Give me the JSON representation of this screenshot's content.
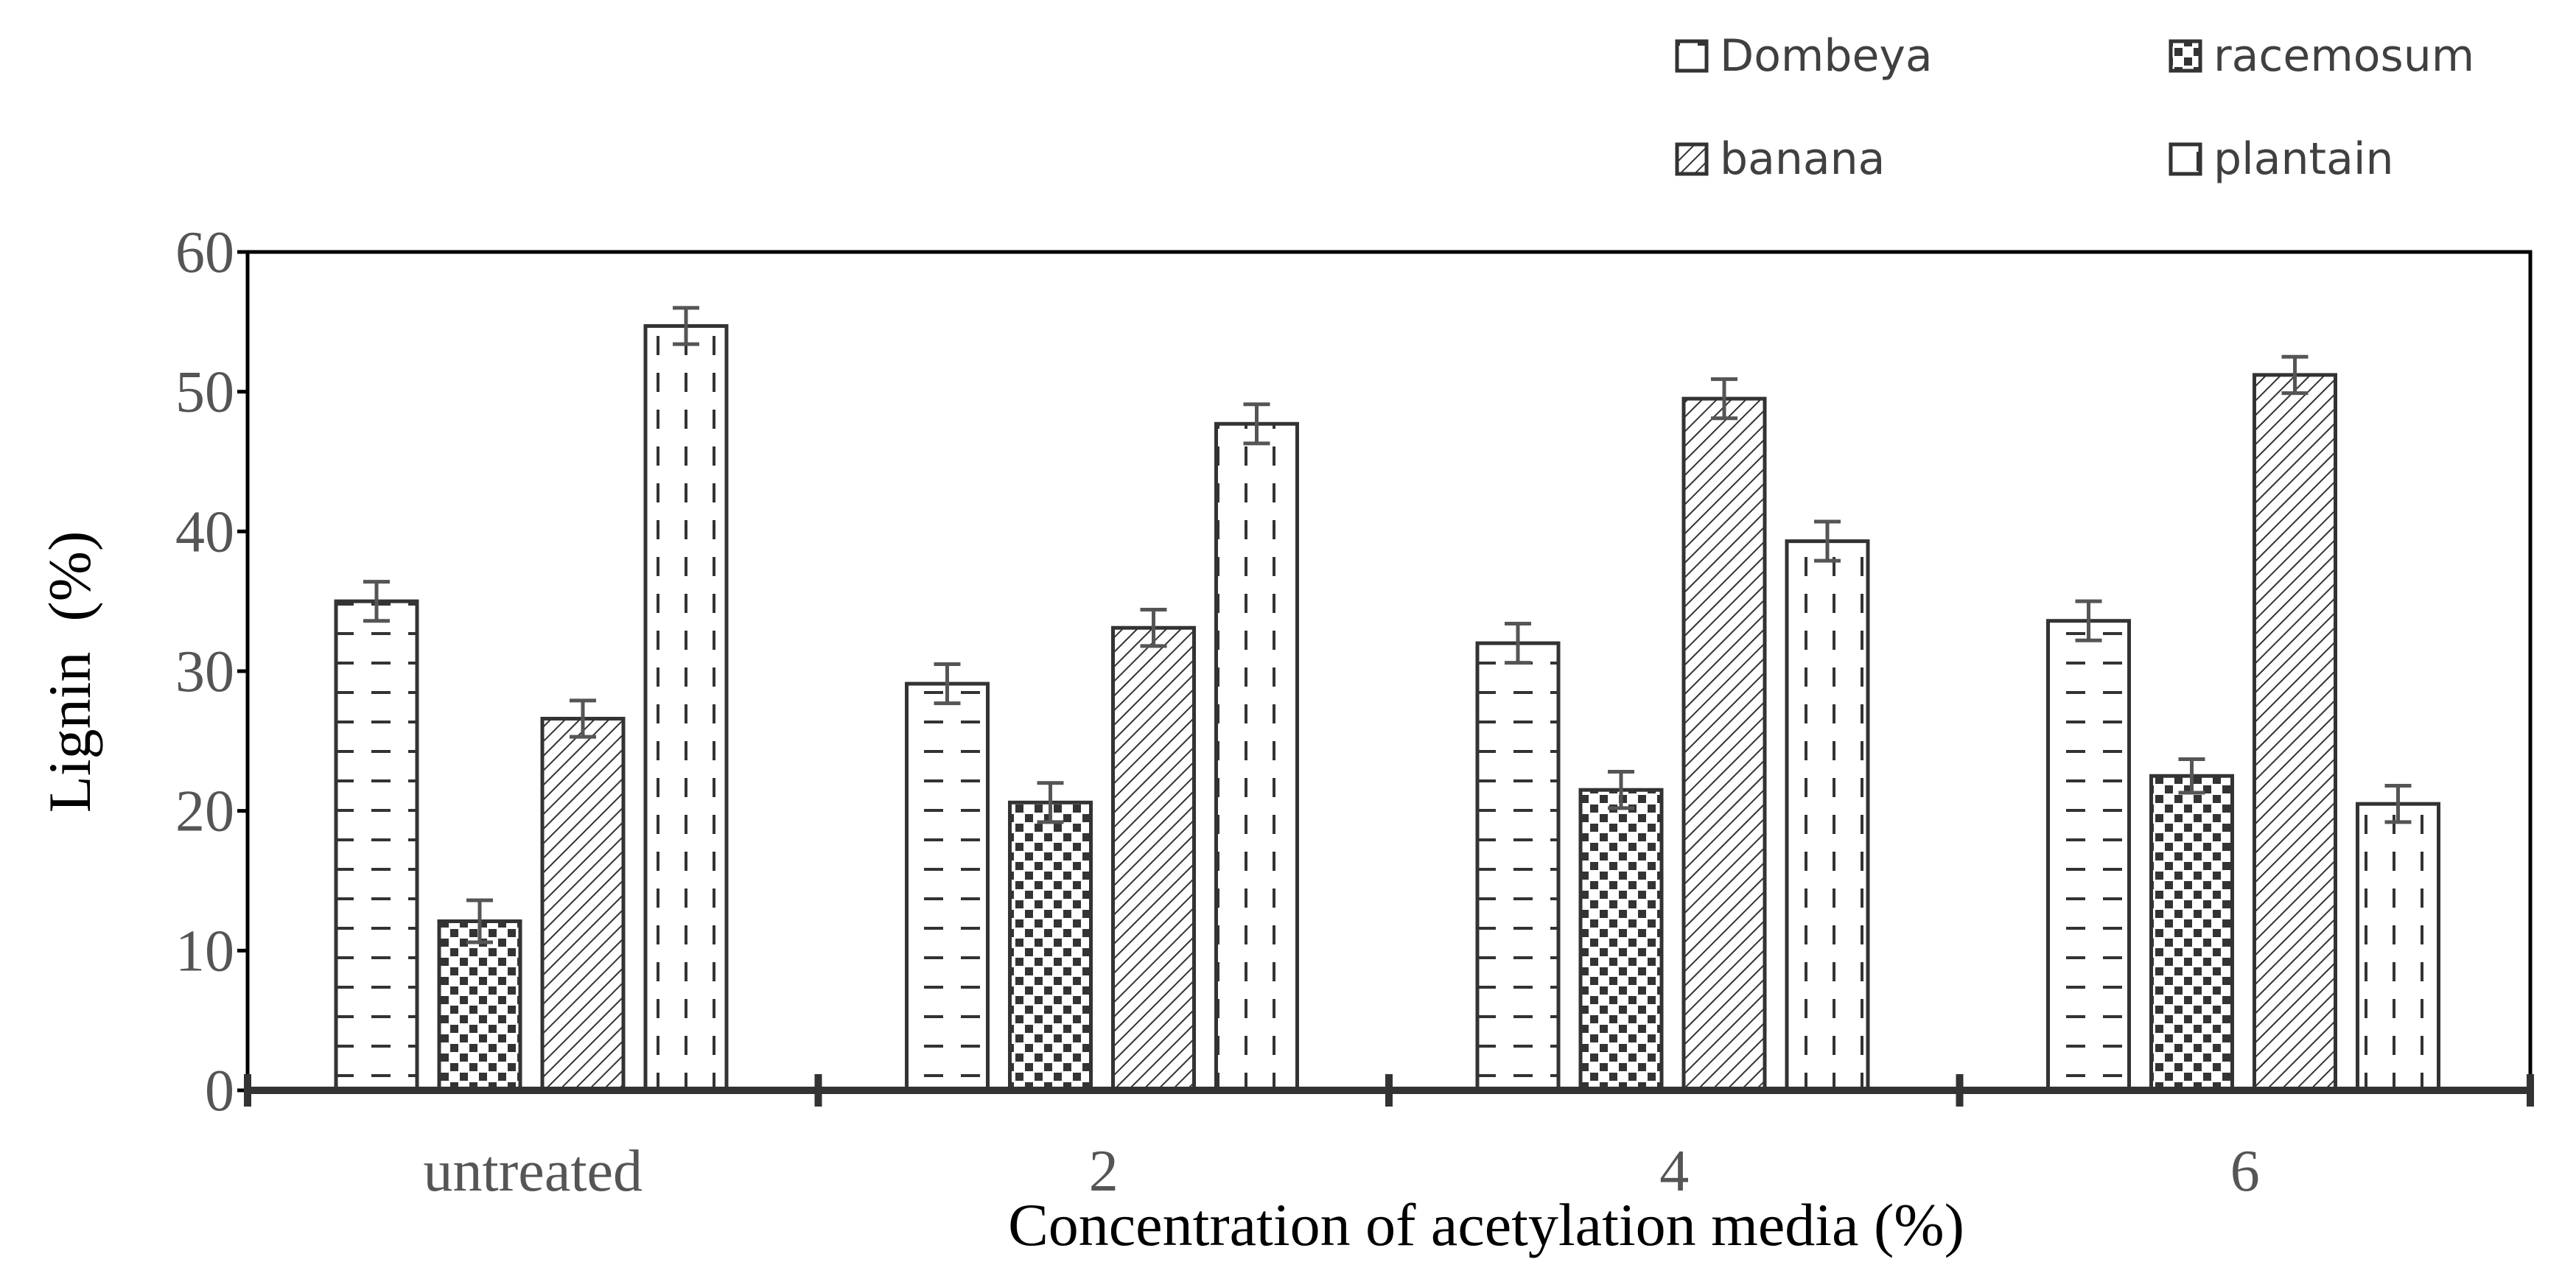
{
  "chart_data": {
    "type": "bar",
    "title": "",
    "xlabel": "Concentration of acetylation media (%)",
    "ylabel": "Lignin  (%)",
    "ylim": [
      0,
      60
    ],
    "yticks": [
      "0",
      "10",
      "20",
      "30",
      "40",
      "50",
      "60"
    ],
    "categories": [
      "untreated",
      "2",
      "4",
      "6"
    ],
    "legend_position": "top-right",
    "series": [
      {
        "name": "Dombeya",
        "pattern": "horizontal-dashes",
        "values": [
          35.0,
          29.1,
          32.0,
          33.6
        ],
        "errors": [
          1.4,
          1.4,
          1.4,
          1.4
        ]
      },
      {
        "name": "racemosum",
        "pattern": "checker-dots",
        "values": [
          12.1,
          20.6,
          21.5,
          22.5
        ],
        "errors": [
          1.5,
          1.4,
          1.3,
          1.2
        ]
      },
      {
        "name": "banana",
        "pattern": "diagonal-hatch",
        "values": [
          26.6,
          33.1,
          49.5,
          51.2
        ],
        "errors": [
          1.3,
          1.3,
          1.4,
          1.3
        ]
      },
      {
        "name": "plantain",
        "pattern": "vertical-dashes",
        "values": [
          54.7,
          47.7,
          39.3,
          20.5
        ],
        "errors": [
          1.3,
          1.4,
          1.4,
          1.3
        ]
      }
    ],
    "colors": {
      "ink": "#333333",
      "tick_text": "#555555",
      "background": "#ffffff"
    }
  }
}
